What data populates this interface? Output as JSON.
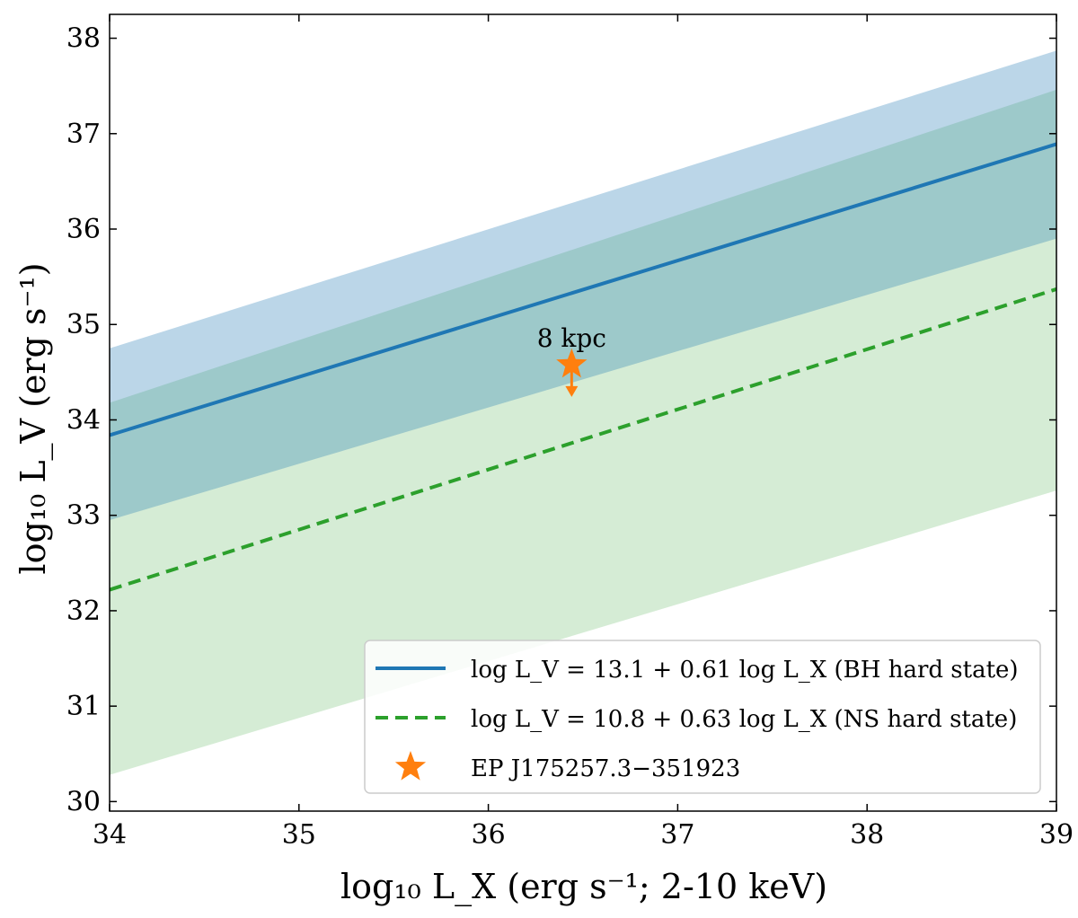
{
  "chart_data": {
    "type": "line",
    "xlabel": "log₁₀ L_X (erg s⁻¹; 2-10 keV)",
    "ylabel": "log₁₀ L_V (erg s⁻¹)",
    "xlim": [
      34,
      39
    ],
    "ylim": [
      29.9,
      38.25
    ],
    "xticks": [
      "34",
      "35",
      "36",
      "37",
      "38",
      "39"
    ],
    "yticks": [
      "30",
      "31",
      "32",
      "33",
      "34",
      "35",
      "36",
      "37",
      "38"
    ],
    "grid": false,
    "legend_position": "bottom-right",
    "series": [
      {
        "name": "log L_V = 13.1 + 0.61 log L_X (BH hard state)",
        "style": "solid",
        "color": "#1f77b4",
        "x": [
          34,
          39
        ],
        "y": [
          33.84,
          36.89
        ],
        "band_upper": [
          34.75,
          37.87
        ],
        "band_lower": [
          32.95,
          35.9
        ],
        "inner_upper": [
          34.18,
          37.46
        ],
        "band_color": "#1f77b4"
      },
      {
        "name": "log L_V = 10.8 + 0.63 log L_X (NS hard state)",
        "style": "dashed",
        "color": "#2ca02c",
        "x": [
          34,
          39
        ],
        "y": [
          32.22,
          35.37
        ],
        "band_upper": [
          34.18,
          37.46
        ],
        "band_lower": [
          30.28,
          33.26
        ],
        "band_color": "#2ca02c"
      },
      {
        "name": "EP J175257.3−351923",
        "style": "marker-star",
        "color": "#ff7f0e",
        "x": [
          36.44
        ],
        "y": [
          34.58
        ],
        "upper_limit": true
      }
    ],
    "annotations": [
      {
        "text": "8 kpc",
        "x": 36.44,
        "y": 34.85
      }
    ]
  }
}
